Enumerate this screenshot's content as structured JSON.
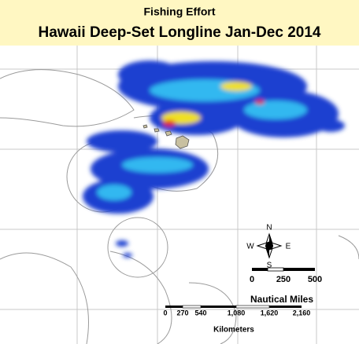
{
  "header": {
    "title": "Fishing Effort",
    "subtitle": "Hawaii Deep-Set Longline Jan-Dec 2014"
  },
  "compass": {
    "north": "N",
    "south": "S",
    "east": "E",
    "west": "W"
  },
  "scale_nautical": {
    "ticks": [
      "0",
      "250",
      "500"
    ],
    "unit": "Nautical Miles"
  },
  "scale_km": {
    "ticks": [
      "0",
      "270",
      "540",
      "1,080",
      "1,620",
      "2,160"
    ],
    "unit": "Kilometers"
  }
}
